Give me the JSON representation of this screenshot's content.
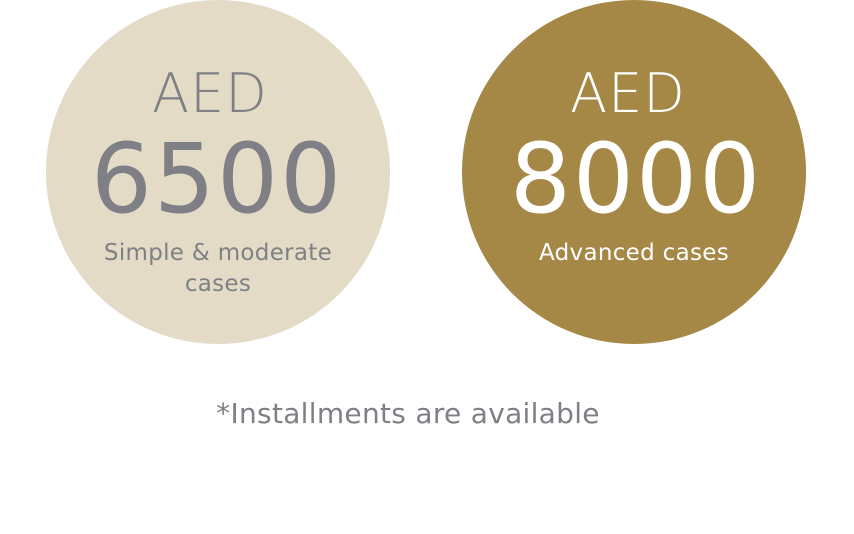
{
  "plans": [
    {
      "currency": "AED",
      "amount": "6500",
      "description_line1": "Simple & moderate",
      "description_line2": "cases",
      "background_color": "#e3dbc6",
      "text_color": "#7e8085"
    },
    {
      "currency": "AED",
      "amount": "8000",
      "description_line1": "Advanced cases",
      "background_color": "#a58746",
      "text_color": "#ffffff"
    }
  ],
  "footnote": "*Installments are available"
}
